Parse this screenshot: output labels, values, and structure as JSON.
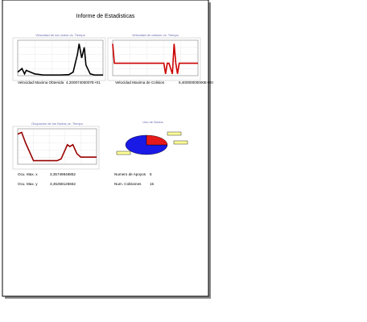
{
  "title": "Informe de Estadisticas",
  "charts": [
    {
      "type": "line",
      "title": "Velocidad de los nodos vs. Tiempo",
      "color": "#000000",
      "xlim": [
        0,
        1
      ],
      "ylim": [
        0,
        1
      ],
      "x": [
        0,
        0.05,
        0.08,
        0.1,
        0.15,
        0.2,
        0.3,
        0.4,
        0.5,
        0.6,
        0.65,
        0.7,
        0.72,
        0.75,
        0.78,
        0.8,
        0.85,
        0.9,
        1
      ],
      "values": [
        0.1,
        0.2,
        0.05,
        0.15,
        0.1,
        0.05,
        0.02,
        0.02,
        0.02,
        0.03,
        0.1,
        0.6,
        0.9,
        0.5,
        0.8,
        0.3,
        0.05,
        0.02,
        0.02
      ]
    },
    {
      "type": "line",
      "title": "Velocidad de colision vs. Tiempo",
      "color": "#cc0000",
      "xlim": [
        0,
        1
      ],
      "ylim": [
        0,
        1
      ],
      "x": [
        0,
        0.02,
        0.04,
        0.06,
        0.1,
        0.3,
        0.6,
        0.62,
        0.64,
        0.66,
        0.7,
        0.72,
        0.74,
        0.76,
        0.78,
        0.8,
        1
      ],
      "values": [
        0.9,
        0.35,
        0.35,
        0.35,
        0.35,
        0.35,
        0.35,
        0.05,
        0.35,
        0.35,
        0.05,
        0.9,
        0.35,
        0.05,
        0.35,
        0.35,
        0.35
      ]
    },
    {
      "type": "line",
      "title": "Ocupacion de los Nodos vs. Tiempo",
      "color": "#990000",
      "xlim": [
        0,
        1
      ],
      "ylim": [
        0,
        1
      ],
      "x": [
        0,
        0.05,
        0.1,
        0.15,
        0.2,
        0.3,
        0.4,
        0.5,
        0.55,
        0.6,
        0.63,
        0.66,
        0.7,
        0.75,
        0.8,
        0.9,
        1
      ],
      "values": [
        0.85,
        0.9,
        0.6,
        0.35,
        0.1,
        0.1,
        0.1,
        0.1,
        0.15,
        0.4,
        0.55,
        0.5,
        0.55,
        0.3,
        0.2,
        0.2,
        0.2
      ]
    },
    {
      "type": "pie",
      "title": "Uso de Nodos",
      "values": [
        75,
        25
      ],
      "colors": [
        "#1a1ae6",
        "#e61a1a"
      ]
    }
  ],
  "fields": [
    {
      "label": "Velocidad Maxima Obtenida",
      "value": "4,20007400007E+01"
    },
    {
      "label": "Velocidad Maxima de Colision",
      "value": "6,40000000000E+00"
    },
    {
      "label": "Ocu. Max. x",
      "value": "3,35749846852"
    },
    {
      "label": "Ocu. Max. y",
      "value": "3,45258125662"
    },
    {
      "label": "Numero de Apoyos",
      "value": "5"
    },
    {
      "label": "Num. Colisiones",
      "value": "15"
    }
  ]
}
